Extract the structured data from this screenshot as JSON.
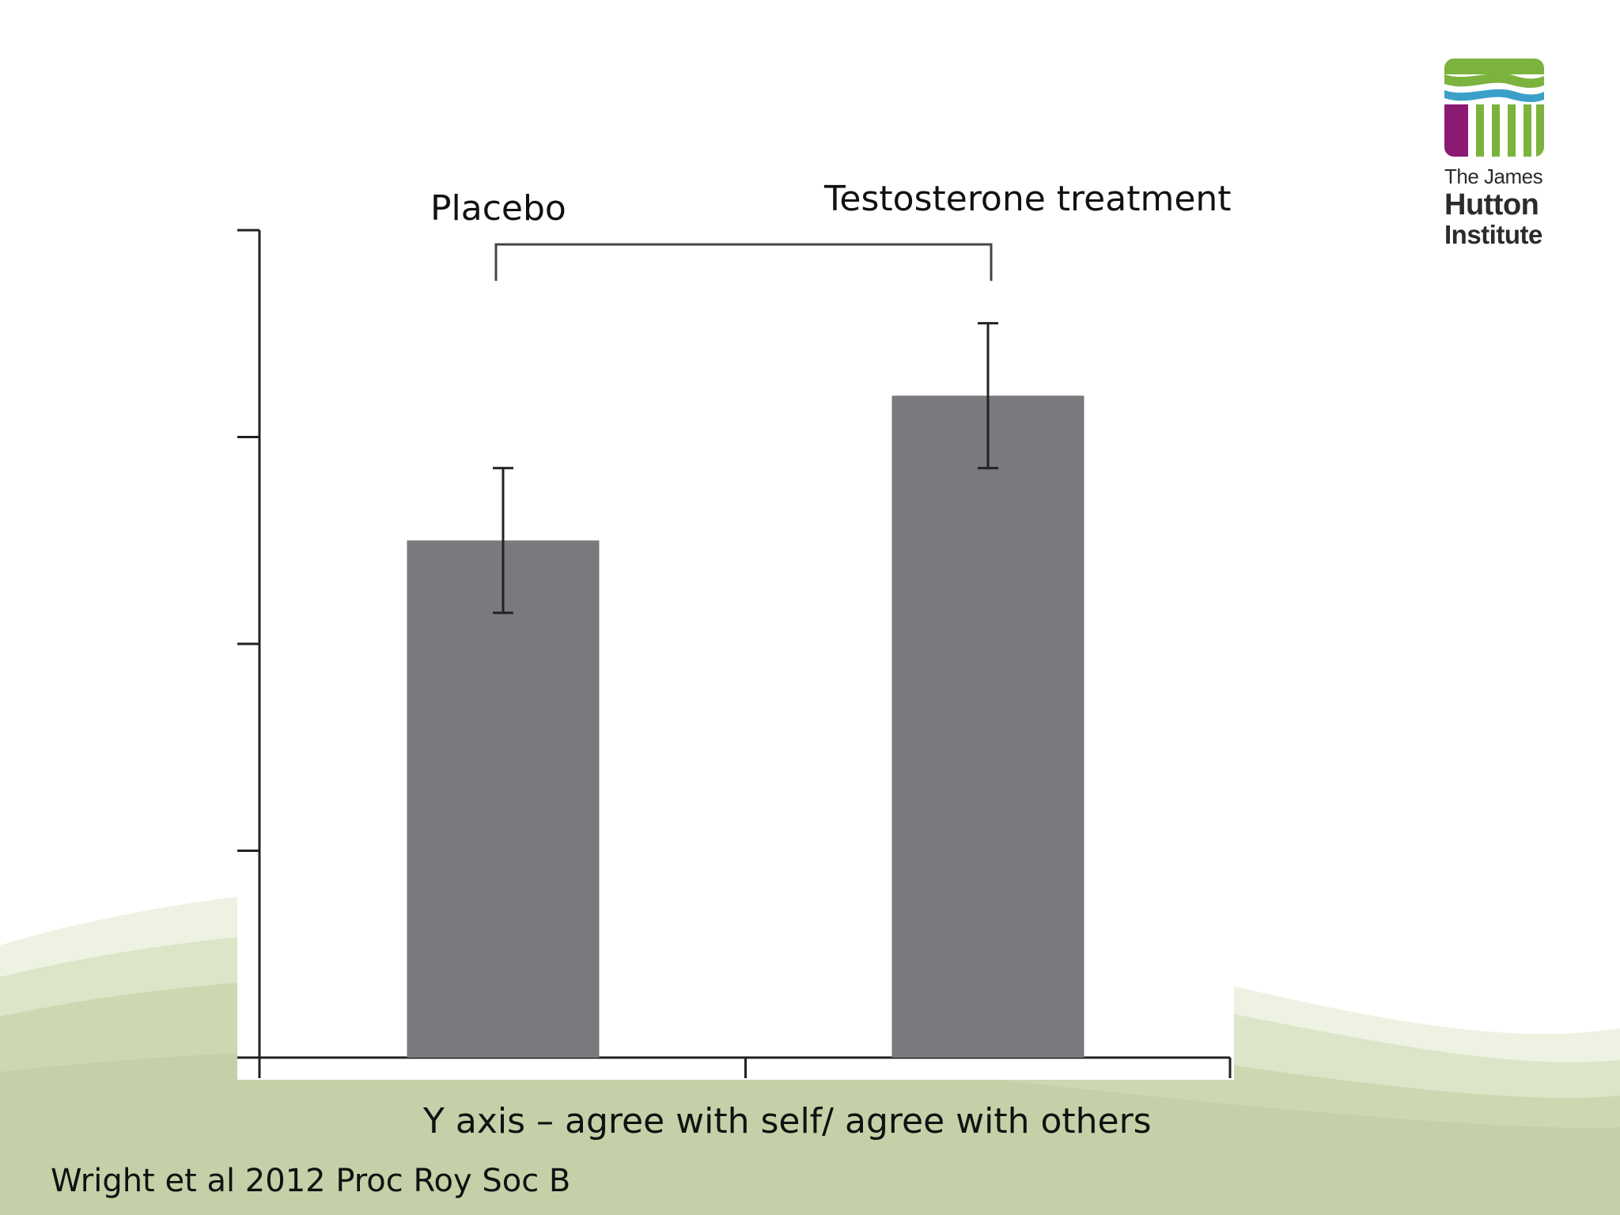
{
  "brand": {
    "logo_line1": "The James",
    "logo_line2": "Hutton",
    "logo_line3": "Institute",
    "colors": {
      "green": "#7bb33e",
      "blue": "#3ba0c9",
      "purple": "#8b1a73",
      "wave_light": "#e6ecd6",
      "wave_dark": "#c7d3ab"
    }
  },
  "chart_data": {
    "type": "bar",
    "categories": [
      "Placebo",
      "Testosterone treatment"
    ],
    "values": [
      2.5,
      3.2
    ],
    "errors": [
      0.35,
      0.35
    ],
    "ylim": [
      0,
      4
    ],
    "yticks": [
      0,
      1,
      2,
      3,
      4
    ],
    "bar_color": "#7a7a7e",
    "comparison_bracket": true,
    "xlabel": "Y axis – agree with self/ agree with others"
  },
  "citation": "Wright et al 2012 Proc Roy Soc B"
}
